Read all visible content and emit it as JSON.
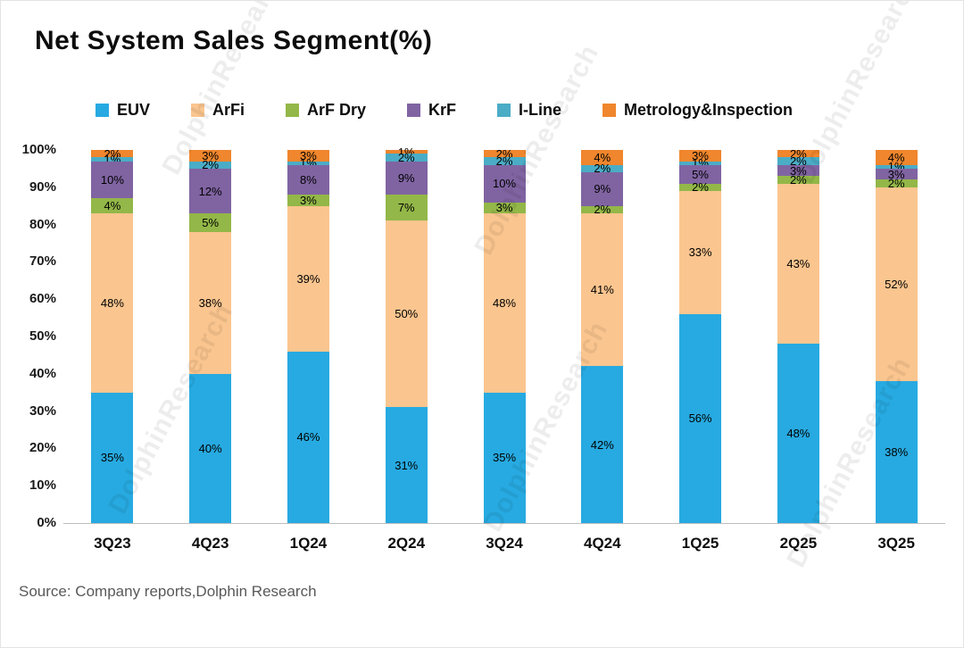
{
  "page": {
    "title": "Net System Sales Segment(%)",
    "source": "Source: Company reports,Dolphin Research",
    "watermark": "DolphinResearch"
  },
  "chart_data": {
    "type": "bar",
    "variant": "stacked-100-percent",
    "title": "Net System Sales Segment(%)",
    "categories": [
      "3Q23",
      "4Q23",
      "1Q24",
      "2Q24",
      "3Q24",
      "4Q24",
      "1Q25",
      "2Q25",
      "3Q25"
    ],
    "series": [
      {
        "name": "EUV",
        "color": "#27AAE1",
        "values": [
          35,
          40,
          46,
          31,
          35,
          42,
          56,
          48,
          38
        ]
      },
      {
        "name": "ArFi",
        "color": "#FAC58F",
        "values": [
          48,
          38,
          39,
          50,
          48,
          41,
          33,
          43,
          52
        ]
      },
      {
        "name": "ArF Dry",
        "color": "#93B748",
        "values": [
          4,
          5,
          3,
          7,
          3,
          2,
          2,
          2,
          2
        ]
      },
      {
        "name": "KrF",
        "color": "#8064A2",
        "values": [
          10,
          12,
          8,
          9,
          10,
          9,
          5,
          3,
          3
        ]
      },
      {
        "name": "I-Line",
        "color": "#4BACC6",
        "values": [
          1,
          2,
          1,
          2,
          2,
          2,
          1,
          2,
          1
        ]
      },
      {
        "name": "Metrology&Inspection",
        "color": "#F0862D",
        "values": [
          2,
          3,
          3,
          1,
          2,
          4,
          3,
          2,
          4
        ]
      }
    ],
    "y_axis": {
      "min": 0,
      "max": 100,
      "step": 10,
      "tick_suffix": "%"
    },
    "xlabel": "",
    "ylabel": "",
    "grid": false,
    "legend_position": "top",
    "value_label_suffix": "%",
    "source": "Source: Company reports,Dolphin Research"
  }
}
